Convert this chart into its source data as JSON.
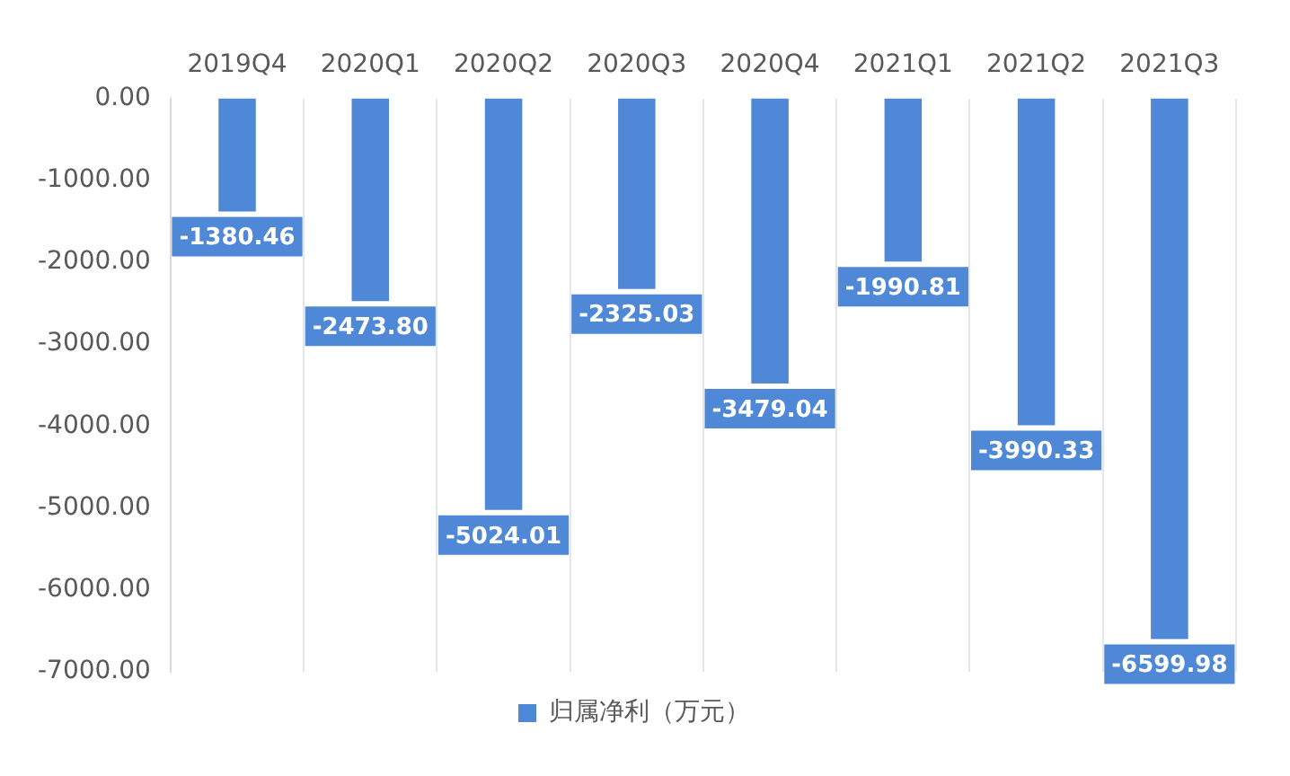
{
  "chart_data": {
    "type": "bar",
    "categories": [
      "2019Q4",
      "2020Q1",
      "2020Q2",
      "2020Q3",
      "2020Q4",
      "2021Q1",
      "2021Q2",
      "2021Q3"
    ],
    "series": [
      {
        "name": "归属净利（万元）",
        "color": "#4f88d6",
        "values": [
          -1380.46,
          -2473.8,
          -5024.01,
          -2325.03,
          -3479.04,
          -1990.81,
          -3990.33,
          -6599.98
        ],
        "value_labels": [
          "-1380.46",
          "-2473.80",
          "-5024.01",
          "-2325.03",
          "-3479.04",
          "-1990.81",
          "-3990.33",
          "-6599.98"
        ]
      }
    ],
    "ylim": [
      -7000,
      0
    ],
    "yticks": [
      {
        "value": 0,
        "label": "0.00"
      },
      {
        "value": -1000,
        "label": "-1000.00"
      },
      {
        "value": -2000,
        "label": "-2000.00"
      },
      {
        "value": -3000,
        "label": "-3000.00"
      },
      {
        "value": -4000,
        "label": "-4000.00"
      },
      {
        "value": -5000,
        "label": "-5000.00"
      },
      {
        "value": -6000,
        "label": "-6000.00"
      },
      {
        "value": -7000,
        "label": "-7000.00"
      }
    ],
    "grid": "x",
    "legend": "bottom"
  }
}
